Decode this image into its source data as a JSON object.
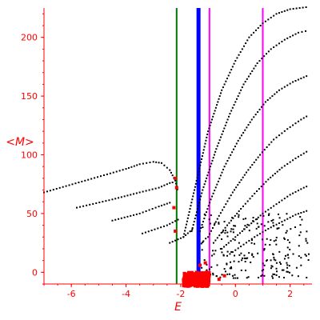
{
  "chart_data": {
    "type": "scatter",
    "xlabel": "E",
    "ylabel": "<M>",
    "xlim": [
      -7,
      2.8
    ],
    "ylim": [
      -10,
      225
    ],
    "axis_color": "#ff0000",
    "x_ticks": [
      -6,
      -4,
      -2,
      0,
      2
    ],
    "x_tick_labels": [
      "-6",
      "-4",
      "-2",
      "0",
      "2"
    ],
    "y_ticks": [
      0,
      50,
      100,
      150,
      200
    ],
    "y_tick_labels": [
      "0",
      "50",
      "100",
      "150",
      "200"
    ],
    "vertical_lines": [
      {
        "x": -2.15,
        "color": "#007700",
        "style": "thin"
      },
      {
        "x": -1.35,
        "color": "#0000ff",
        "style": "thick"
      },
      {
        "x": -0.95,
        "color": "#ff00ff",
        "style": "thin"
      },
      {
        "x": 1.0,
        "color": "#ff00ff",
        "style": "thin"
      }
    ],
    "branches": [
      {
        "name": "",
        "color": "#000000",
        "points": [
          [
            -7.0,
            68
          ],
          [
            -5.5,
            78
          ],
          [
            -4.0,
            88
          ],
          [
            -3.5,
            92
          ],
          [
            -3.0,
            94
          ],
          [
            -2.7,
            93
          ],
          [
            -2.4,
            87
          ],
          [
            -2.2,
            78
          ],
          [
            -2.1,
            68
          ]
        ]
      },
      {
        "name": "",
        "color": "#000000",
        "points": [
          [
            -5.8,
            55
          ],
          [
            -4.5,
            62
          ],
          [
            -3.5,
            68
          ],
          [
            -2.8,
            72
          ],
          [
            -2.4,
            76
          ],
          [
            -2.2,
            77
          ]
        ]
      },
      {
        "name": "",
        "color": "#000000",
        "points": [
          [
            -4.5,
            44
          ],
          [
            -3.5,
            50
          ],
          [
            -2.8,
            56
          ],
          [
            -2.3,
            60
          ]
        ]
      },
      {
        "name": "",
        "color": "#000000",
        "points": [
          [
            -3.4,
            33
          ],
          [
            -2.5,
            40
          ],
          [
            -2.0,
            46
          ]
        ]
      },
      {
        "name": "",
        "color": "#000000",
        "points": [
          [
            -2.4,
            25
          ],
          [
            -1.9,
            30
          ],
          [
            -1.5,
            38
          ]
        ]
      },
      {
        "name": "",
        "color": "#000000",
        "points": [
          [
            -1.9,
            30
          ],
          [
            -1.5,
            70
          ],
          [
            -1.0,
            120
          ],
          [
            -0.5,
            155
          ],
          [
            0.0,
            180
          ],
          [
            0.5,
            200
          ],
          [
            1.0,
            212
          ],
          [
            1.5,
            220
          ],
          [
            2.0,
            224
          ],
          [
            2.7,
            226
          ]
        ]
      },
      {
        "name": "",
        "color": "#000000",
        "points": [
          [
            -1.6,
            35
          ],
          [
            -1.2,
            70
          ],
          [
            -0.7,
            105
          ],
          [
            -0.2,
            135
          ],
          [
            0.3,
            160
          ],
          [
            0.8,
            178
          ],
          [
            1.3,
            190
          ],
          [
            1.8,
            198
          ],
          [
            2.3,
            204
          ],
          [
            2.7,
            206
          ]
        ]
      },
      {
        "name": "",
        "color": "#000000",
        "points": [
          [
            -1.3,
            35
          ],
          [
            -0.9,
            62
          ],
          [
            -0.4,
            90
          ],
          [
            0.1,
            112
          ],
          [
            0.6,
            130
          ],
          [
            1.1,
            145
          ],
          [
            1.6,
            155
          ],
          [
            2.1,
            162
          ],
          [
            2.7,
            168
          ]
        ]
      },
      {
        "name": "",
        "color": "#000000",
        "points": [
          [
            -1.0,
            30
          ],
          [
            -0.6,
            48
          ],
          [
            -0.1,
            68
          ],
          [
            0.4,
            85
          ],
          [
            0.9,
            100
          ],
          [
            1.4,
            113
          ],
          [
            1.9,
            122
          ],
          [
            2.4,
            130
          ],
          [
            2.7,
            134
          ]
        ]
      },
      {
        "name": "",
        "color": "#000000",
        "points": [
          [
            -0.8,
            25
          ],
          [
            -0.3,
            40
          ],
          [
            0.2,
            54
          ],
          [
            0.7,
            67
          ],
          [
            1.2,
            79
          ],
          [
            1.7,
            89
          ],
          [
            2.2,
            97
          ],
          [
            2.7,
            104
          ]
        ]
      },
      {
        "name": "",
        "color": "#000000",
        "points": [
          [
            -0.5,
            20
          ],
          [
            0.0,
            30
          ],
          [
            0.5,
            40
          ],
          [
            1.0,
            50
          ],
          [
            1.5,
            58
          ],
          [
            2.0,
            66
          ],
          [
            2.5,
            72
          ],
          [
            2.7,
            74
          ]
        ]
      },
      {
        "name": "",
        "color": "#000000",
        "points": [
          [
            -0.3,
            14
          ],
          [
            0.2,
            22
          ],
          [
            0.7,
            30
          ],
          [
            1.2,
            37
          ],
          [
            1.7,
            43
          ],
          [
            2.2,
            49
          ],
          [
            2.7,
            53
          ]
        ]
      }
    ],
    "cloud": {
      "color": "#000000",
      "x_range": [
        -1.3,
        2.7
      ],
      "y_range": [
        -5,
        50
      ]
    },
    "red_markers": [
      [
        -2.25,
        55
      ],
      [
        -2.2,
        35
      ],
      [
        -2.15,
        72
      ],
      [
        -2.2,
        80
      ],
      [
        -1.3,
        6
      ],
      [
        -1.1,
        8
      ],
      [
        -0.6,
        -6
      ],
      [
        -0.4,
        -3
      ]
    ],
    "red_blob": {
      "x_range": [
        -1.9,
        -0.95
      ],
      "y_range": [
        -12,
        0
      ]
    }
  }
}
